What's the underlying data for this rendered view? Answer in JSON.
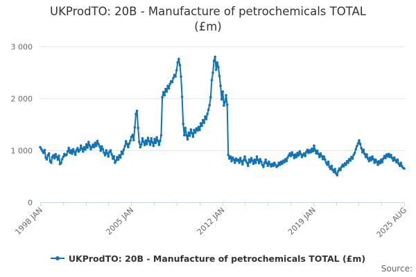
{
  "title": {
    "line1": "UKProdTO: 20B - Manufacture of petrochemicals TOTAL",
    "line2": "(£m)"
  },
  "legend": {
    "label": "UKProdTO: 20B - Manufacture of petrochemicals TOTAL (£m)"
  },
  "source": {
    "label": "Source:"
  },
  "colors": {
    "series": "#0f73b8",
    "grid": "#e6e6e6",
    "axis": "#ccd6eb",
    "axis_text": "#666666",
    "title_text": "#333333"
  },
  "chart_data": {
    "type": "line",
    "title": "UKProdTO: 20B - Manufacture of petrochemicals TOTAL (£m)",
    "xlabel": "",
    "ylabel": "",
    "grid": "horizontal",
    "legend_position": "bottom",
    "x_axis": {
      "start": "1998 JAN",
      "end": "2025 AUG",
      "frequency": "monthly",
      "tick_count": 17,
      "labeled_ticks": [
        {
          "index": 0,
          "label": "1998 JAN"
        },
        {
          "index": 4,
          "label": "2005 JAN"
        },
        {
          "index": 8,
          "label": "2012 JAN"
        },
        {
          "index": 12,
          "label": "2019 JAN"
        },
        {
          "index": 16,
          "label": "2025 AUG"
        }
      ]
    },
    "y_axis": {
      "min": 0,
      "max": 3000,
      "ticks": [
        {
          "value": 0,
          "label": "0"
        },
        {
          "value": 1000,
          "label": "1 000"
        },
        {
          "value": 2000,
          "label": "2 000"
        },
        {
          "value": 3000,
          "label": "3 000"
        }
      ]
    },
    "series": [
      {
        "name": "UKProdTO: 20B - Manufacture of petrochemicals TOTAL (£m)",
        "color": "#0f73b8",
        "start_period": "1998-01",
        "end_period": "2025-08",
        "values": [
          1060,
          1025,
          985,
          950,
          1005,
          860,
          825,
          905,
          940,
          790,
          760,
          870,
          905,
          845,
          925,
          870,
          820,
          895,
          735,
          755,
          830,
          875,
          930,
          900,
          915,
          980,
          1045,
          950,
          1000,
          935,
          1020,
          970,
          915,
          1000,
          1040,
          975,
          1005,
          1090,
          1030,
          975,
          1060,
          1015,
          1115,
          1050,
          1160,
          1090,
          1020,
          1065,
          1110,
          1060,
          1145,
          1085,
          1180,
          1120,
          1075,
          990,
          1075,
          1020,
          950,
          905,
          1000,
          940,
          880,
          970,
          1000,
          925,
          840,
          885,
          760,
          800,
          870,
          820,
          905,
          860,
          975,
          930,
          1015,
          1080,
          1175,
          1120,
          1060,
          1130,
          1185,
          1260,
          1295,
          1195,
          1440,
          1700,
          1760,
          1430,
          1160,
          1060,
          1115,
          1230,
          1160,
          1100,
          1190,
          1120,
          1240,
          1175,
          1105,
          1230,
          1150,
          1085,
          1215,
          1140,
          1250,
          1180,
          1105,
          1180,
          1290,
          2020,
          2120,
          2060,
          2180,
          2130,
          2240,
          2190,
          2280,
          2330,
          2310,
          2390,
          2450,
          2420,
          2540,
          2690,
          2760,
          2640,
          2420,
          2030,
          1510,
          1290,
          1430,
          1290,
          1210,
          1340,
          1280,
          1400,
          1330,
          1260,
          1390,
          1340,
          1420,
          1380,
          1450,
          1390,
          1520,
          1470,
          1580,
          1530,
          1650,
          1600,
          1700,
          1780,
          1870,
          2020,
          2350,
          2490,
          2720,
          2800,
          2550,
          2690,
          2600,
          2430,
          2240,
          1980,
          2130,
          1860,
          1930,
          2060,
          1880,
          910,
          840,
          880,
          790,
          860,
          820,
          760,
          840,
          800,
          820,
          760,
          850,
          790,
          730,
          810,
          880,
          800,
          760,
          700,
          820,
          770,
          850,
          800,
          740,
          820,
          760,
          880,
          810,
          750,
          830,
          780,
          720,
          680,
          760,
          820,
          750,
          700,
          780,
          730,
          690,
          740,
          700,
          760,
          720,
          680,
          700,
          760,
          720,
          780,
          740,
          800,
          770,
          830,
          790,
          860,
          900,
          940,
          890,
          960,
          910,
          850,
          920,
          870,
          950,
          900,
          980,
          930,
          870,
          910,
          940,
          890,
          970,
          1010,
          950,
          1000,
          960,
          1030,
          980,
          1090,
          1000,
          940,
          990,
          930,
          870,
          940,
          890,
          830,
          880,
          820,
          760,
          720,
          780,
          680,
          640,
          700,
          620,
          580,
          640,
          555,
          520,
          600,
          650,
          620,
          680,
          720,
          690,
          750,
          720,
          790,
          760,
          830,
          800,
          870,
          840,
          910,
          950,
          1020,
          1080,
          1130,
          1190,
          1120,
          1040,
          960,
          1010,
          930,
          870,
          920,
          840,
          790,
          860,
          810,
          880,
          830,
          760,
          820,
          780,
          720,
          790,
          750,
          820,
          770,
          840,
          890,
          850,
          920,
          880,
          930,
          870,
          910,
          850,
          800,
          860,
          810,
          770,
          820,
          740,
          700,
          760,
          690,
          660,
          650
        ]
      }
    ]
  }
}
